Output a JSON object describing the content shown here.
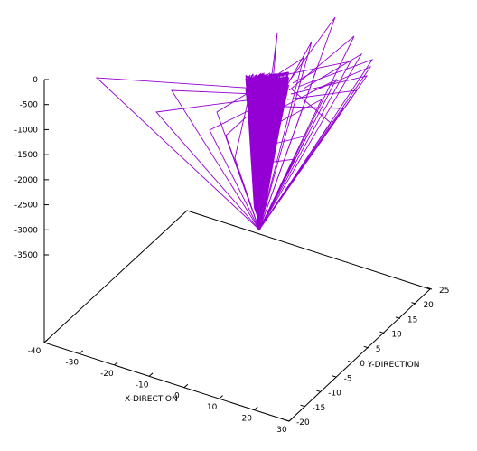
{
  "chart_data": {
    "type": "line",
    "plot_kind": "3d-line",
    "title": "",
    "xlabel": "X-DIRECTION",
    "ylabel": "Y-DIRECTION",
    "zlabel": "",
    "xlim": [
      -40,
      30
    ],
    "ylim": [
      -20,
      25
    ],
    "zlim": [
      -3500,
      0
    ],
    "x_ticks": [
      "-40",
      "-30",
      "-20",
      "-10",
      "0",
      "10",
      "20",
      "30"
    ],
    "y_ticks": [
      "-20",
      "-15",
      "-10",
      "-5",
      "0",
      "5",
      "10",
      "15",
      "20",
      "25"
    ],
    "z_ticks": [
      "0",
      "-500",
      "-1000",
      "-1500",
      "-2000",
      "-2500",
      "-3000",
      "-3500"
    ],
    "grid": false,
    "legend": "none",
    "series": [
      {
        "color": "#9400d3",
        "description": "dense bundle of trajectories converging near (0, 0, -3000) and fanning out upward",
        "apex": {
          "x": 0,
          "y": 0,
          "z": -3000
        },
        "core_top": [
          {
            "x": -3,
            "y": 2,
            "z": -50
          },
          {
            "x": 5,
            "y": 2,
            "z": -50
          }
        ],
        "outliers": [
          {
            "x": -36,
            "y": 6,
            "z": 50
          },
          {
            "x": -5,
            "y": 20,
            "z": -300
          },
          {
            "x": -14,
            "y": 0,
            "z": -20
          },
          {
            "x": 5,
            "y": 20,
            "z": 200
          },
          {
            "x": 15,
            "y": 15,
            "z": 100
          },
          {
            "x": 20,
            "y": 12,
            "z": 0
          },
          {
            "x": 17,
            "y": 8,
            "z": -100
          },
          {
            "x": 12,
            "y": 10,
            "z": -200
          },
          {
            "x": 8,
            "y": 6,
            "z": -400
          },
          {
            "x": 20,
            "y": 18,
            "z": 150
          },
          {
            "x": -12,
            "y": 3,
            "z": -350
          },
          {
            "x": -9,
            "y": 4,
            "z": -800
          }
        ]
      }
    ]
  }
}
